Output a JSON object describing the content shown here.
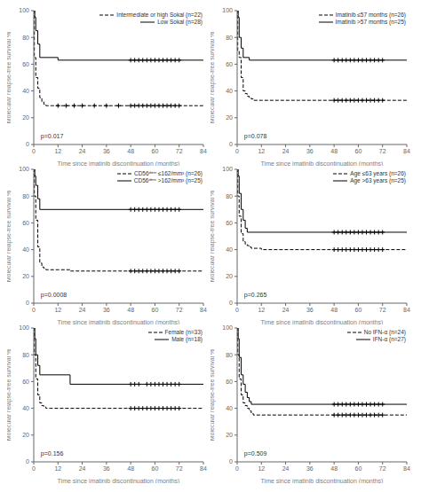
{
  "chart_data": [
    {
      "type": "step",
      "xlabel": "Time since imatinib discontinuation (months)",
      "ylabel": "Molecular relapse-free survival %",
      "xlim": [
        0,
        84
      ],
      "ylim": [
        0,
        100
      ],
      "xticks": [
        0,
        12,
        24,
        36,
        48,
        60,
        72,
        84
      ],
      "yticks": [
        0,
        20,
        40,
        60,
        80,
        100
      ],
      "grid": false,
      "legend": "upper right",
      "annotations": [
        {
          "text": "p=0.017",
          "x": 3,
          "y": 6
        }
      ],
      "series": [
        {
          "name": "Intermediate or high Sokal (n=22)",
          "type": "step",
          "color": "black",
          "line_style": "dashed",
          "x": [
            0,
            0.3,
            1,
            2,
            3,
            4,
            5,
            6,
            7,
            8,
            9,
            12,
            84
          ],
          "values": [
            100,
            65,
            50,
            42,
            35,
            32,
            30,
            29,
            29,
            29,
            29,
            29,
            29
          ]
        },
        {
          "name": "Low Sokal (n=28)",
          "type": "step",
          "color": "black",
          "line_style": "solid",
          "x": [
            0,
            0.5,
            1,
            2,
            3,
            12,
            84
          ],
          "values": [
            100,
            95,
            85,
            75,
            65,
            63,
            63
          ]
        },
        {
          "type": "scatter",
          "color": "black",
          "marker": "plus",
          "x": [
            12,
            16,
            20,
            24,
            30,
            36,
            42,
            48,
            50,
            52,
            54,
            56,
            58,
            60,
            62,
            64,
            66,
            68,
            70,
            72
          ],
          "values": [
            29,
            29,
            29,
            29,
            29,
            29,
            29,
            29,
            29,
            29,
            29,
            29,
            29,
            29,
            29,
            29,
            29,
            29,
            29,
            29
          ]
        },
        {
          "type": "scatter",
          "color": "black",
          "marker": "plus",
          "x": [
            48,
            50,
            52,
            54,
            56,
            58,
            60,
            62,
            64,
            66,
            68,
            70,
            72
          ],
          "values": [
            63,
            63,
            63,
            63,
            63,
            63,
            63,
            63,
            63,
            63,
            63,
            63,
            63
          ]
        }
      ]
    },
    {
      "type": "step",
      "xlabel": "Time since imatinib discontinuation (months)",
      "ylabel": "Molecular relapse-free survival %",
      "xlim": [
        0,
        84
      ],
      "ylim": [
        0,
        100
      ],
      "xticks": [
        0,
        12,
        24,
        36,
        48,
        60,
        72,
        84
      ],
      "yticks": [
        0,
        20,
        40,
        60,
        80,
        100
      ],
      "grid": false,
      "legend": "upper right",
      "annotations": [
        {
          "text": "p=0.078",
          "x": 3,
          "y": 6
        }
      ],
      "series": [
        {
          "name": "Imatinib ≤57 months (n=26)",
          "type": "step",
          "color": "black",
          "line_style": "dashed",
          "x": [
            0,
            0.3,
            1,
            2,
            3,
            4,
            5,
            6,
            7,
            8,
            12,
            18,
            84
          ],
          "values": [
            100,
            70,
            65,
            50,
            40,
            38,
            36,
            35,
            34,
            33,
            33,
            33,
            33
          ]
        },
        {
          "name": "Imatinib >57 months (n=25)",
          "type": "step",
          "color": "black",
          "line_style": "solid",
          "x": [
            0,
            0.5,
            1,
            2,
            3,
            6,
            84
          ],
          "values": [
            100,
            95,
            80,
            72,
            65,
            63,
            63
          ]
        },
        {
          "type": "scatter",
          "color": "black",
          "marker": "plus",
          "x": [
            48,
            50,
            52,
            54,
            56,
            58,
            60,
            62,
            64,
            66,
            68,
            70,
            72
          ],
          "values": [
            33,
            33,
            33,
            33,
            33,
            33,
            33,
            33,
            33,
            33,
            33,
            33,
            33
          ]
        },
        {
          "type": "scatter",
          "color": "black",
          "marker": "plus",
          "x": [
            48,
            50,
            52,
            54,
            56,
            58,
            60,
            62,
            64,
            66,
            68,
            70,
            72
          ],
          "values": [
            63,
            63,
            63,
            63,
            63,
            63,
            63,
            63,
            63,
            63,
            63,
            63,
            63
          ]
        }
      ]
    },
    {
      "type": "step",
      "xlabel": "Time since imatinib discontinuation (months)",
      "ylabel": "Molecular relapse-free survival %",
      "xlim": [
        0,
        84
      ],
      "ylim": [
        0,
        100
      ],
      "xticks": [
        0,
        12,
        24,
        36,
        48,
        60,
        72,
        84
      ],
      "yticks": [
        0,
        20,
        40,
        60,
        80,
        100
      ],
      "grid": false,
      "legend": "upper right",
      "annotations": [
        {
          "text": "p=0.0008",
          "x": 3,
          "y": 6
        }
      ],
      "series": [
        {
          "name": "CD56ᵈᵉᵐ ≤162/mm³ (n=26)",
          "type": "step",
          "color": "black",
          "line_style": "dashed",
          "x": [
            0,
            0.3,
            1,
            2,
            3,
            4,
            5,
            6,
            7,
            8,
            12,
            18,
            84
          ],
          "values": [
            100,
            80,
            62,
            42,
            30,
            27,
            26,
            25,
            25,
            25,
            25,
            24,
            24
          ]
        },
        {
          "name": "CD56ᵈᵉᵐ >162/mm³ (n=25)",
          "type": "step",
          "color": "black",
          "line_style": "solid",
          "x": [
            0,
            0.5,
            1,
            2,
            3,
            84
          ],
          "values": [
            100,
            95,
            88,
            78,
            70,
            70
          ]
        },
        {
          "type": "scatter",
          "color": "black",
          "marker": "plus",
          "x": [
            48,
            50,
            52,
            54,
            56,
            58,
            60,
            62,
            64,
            66,
            68,
            70,
            72
          ],
          "values": [
            24,
            24,
            24,
            24,
            24,
            24,
            24,
            24,
            24,
            24,
            24,
            24,
            24
          ]
        },
        {
          "type": "scatter",
          "color": "black",
          "marker": "plus",
          "x": [
            48,
            50,
            52,
            54,
            56,
            58,
            60,
            62,
            64,
            66,
            68,
            70,
            72
          ],
          "values": [
            70,
            70,
            70,
            70,
            70,
            70,
            70,
            70,
            70,
            70,
            70,
            70,
            70
          ]
        }
      ]
    },
    {
      "type": "step",
      "xlabel": "Time since imatinib discontinuation (months)",
      "ylabel": "Molecular relapse-free survival %",
      "xlim": [
        0,
        84
      ],
      "ylim": [
        0,
        100
      ],
      "xticks": [
        0,
        12,
        24,
        36,
        48,
        60,
        72,
        84
      ],
      "yticks": [
        0,
        20,
        40,
        60,
        80,
        100
      ],
      "grid": false,
      "legend": "upper right",
      "annotations": [
        {
          "text": "p=0.265",
          "x": 3,
          "y": 6
        }
      ],
      "series": [
        {
          "name": "Age ≤63 years (n=26)",
          "type": "step",
          "color": "black",
          "line_style": "dashed",
          "x": [
            0,
            0.3,
            1,
            2,
            3,
            4,
            5,
            6,
            7,
            12,
            84
          ],
          "values": [
            100,
            80,
            65,
            52,
            46,
            44,
            43,
            42,
            41,
            40,
            40
          ]
        },
        {
          "name": "Age >63 years (n=25)",
          "type": "step",
          "color": "black",
          "line_style": "solid",
          "x": [
            0,
            0.5,
            1,
            2,
            3,
            4,
            5,
            84
          ],
          "values": [
            100,
            95,
            82,
            70,
            62,
            56,
            53,
            53
          ]
        },
        {
          "type": "scatter",
          "color": "black",
          "marker": "plus",
          "x": [
            48,
            50,
            52,
            54,
            56,
            58,
            60,
            62,
            64,
            66,
            68,
            70,
            72
          ],
          "values": [
            40,
            40,
            40,
            40,
            40,
            40,
            40,
            40,
            40,
            40,
            40,
            40,
            40
          ]
        },
        {
          "type": "scatter",
          "color": "black",
          "marker": "plus",
          "x": [
            48,
            50,
            52,
            54,
            56,
            58,
            60,
            62,
            64,
            66,
            68,
            70,
            72
          ],
          "values": [
            53,
            53,
            53,
            53,
            53,
            53,
            53,
            53,
            53,
            53,
            53,
            53,
            53
          ]
        }
      ]
    },
    {
      "type": "step",
      "xlabel": "Time since imatinib discontinuation (months)",
      "ylabel": "Molecular relapse-free survival %",
      "xlim": [
        0,
        84
      ],
      "ylim": [
        0,
        100
      ],
      "xticks": [
        0,
        12,
        24,
        36,
        48,
        60,
        72,
        84
      ],
      "yticks": [
        0,
        20,
        40,
        60,
        80,
        100
      ],
      "grid": false,
      "legend": "upper right",
      "annotations": [
        {
          "text": "p=0.156",
          "x": 3,
          "y": 6
        }
      ],
      "series": [
        {
          "name": "Female (n=33)",
          "type": "step",
          "color": "black",
          "line_style": "dashed",
          "x": [
            0,
            0.3,
            1,
            2,
            3,
            4,
            5,
            6,
            7,
            8,
            12,
            84
          ],
          "values": [
            100,
            80,
            62,
            50,
            44,
            42,
            41,
            40,
            40,
            40,
            40,
            40
          ]
        },
        {
          "name": "Male (n=18)",
          "type": "step",
          "color": "black",
          "line_style": "solid",
          "x": [
            0,
            0.5,
            1,
            2,
            3,
            18,
            84
          ],
          "values": [
            100,
            92,
            80,
            72,
            65,
            58,
            58
          ]
        },
        {
          "type": "scatter",
          "color": "black",
          "marker": "plus",
          "x": [
            48,
            50,
            52,
            54,
            56,
            58,
            60,
            62,
            64,
            66,
            68,
            70,
            72
          ],
          "values": [
            40,
            40,
            40,
            40,
            40,
            40,
            40,
            40,
            40,
            40,
            40,
            40,
            40
          ]
        },
        {
          "type": "scatter",
          "color": "black",
          "marker": "plus",
          "x": [
            48,
            50,
            52,
            56,
            58,
            60,
            62,
            64,
            66,
            68,
            70,
            72
          ],
          "values": [
            58,
            58,
            58,
            58,
            58,
            58,
            58,
            58,
            58,
            58,
            58,
            58
          ]
        }
      ]
    },
    {
      "type": "step",
      "xlabel": "Time since imatinib discontinuation (months)",
      "ylabel": "Molecular relapse-free survival %",
      "xlim": [
        0,
        84
      ],
      "ylim": [
        0,
        100
      ],
      "xticks": [
        0,
        12,
        24,
        36,
        48,
        60,
        72,
        84
      ],
      "yticks": [
        0,
        20,
        40,
        60,
        80,
        100
      ],
      "grid": false,
      "legend": "upper right",
      "annotations": [
        {
          "text": "p=0.509",
          "x": 3,
          "y": 6
        }
      ],
      "series": [
        {
          "name": "No IFN-α (n=24)",
          "type": "step",
          "color": "black",
          "line_style": "dashed",
          "x": [
            0,
            0.3,
            1,
            2,
            3,
            4,
            5,
            6,
            7,
            8,
            12,
            84
          ],
          "values": [
            100,
            80,
            62,
            50,
            44,
            42,
            40,
            38,
            36,
            35,
            35,
            35
          ]
        },
        {
          "name": "IFN-α (n=27)",
          "type": "step",
          "color": "black",
          "line_style": "solid",
          "x": [
            0,
            0.5,
            1,
            2,
            3,
            4,
            5,
            6,
            7,
            84
          ],
          "values": [
            100,
            92,
            78,
            65,
            58,
            52,
            48,
            45,
            43,
            43
          ]
        },
        {
          "type": "scatter",
          "color": "black",
          "marker": "plus",
          "x": [
            48,
            50,
            52,
            54,
            56,
            58,
            60,
            62,
            64,
            66,
            68,
            70,
            72
          ],
          "values": [
            35,
            35,
            35,
            35,
            35,
            35,
            35,
            35,
            35,
            35,
            35,
            35,
            35
          ]
        },
        {
          "type": "scatter",
          "color": "black",
          "marker": "plus",
          "x": [
            48,
            50,
            52,
            54,
            56,
            58,
            60,
            62,
            64,
            66,
            68,
            70,
            72
          ],
          "values": [
            43,
            43,
            43,
            43,
            43,
            43,
            43,
            43,
            43,
            43,
            43,
            43,
            43
          ]
        }
      ]
    }
  ]
}
